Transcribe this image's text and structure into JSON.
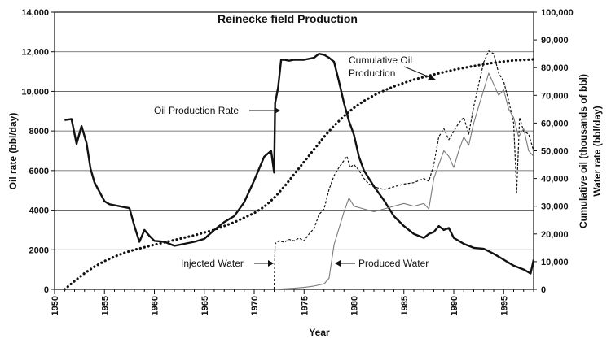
{
  "chart_data": {
    "type": "line",
    "title": "Reinecke field Production",
    "xlabel": "Year",
    "ylabel_left": "Oil rate (bbl/day)",
    "ylabel_right_1": "Cumulative oil (thousands of bbl)",
    "ylabel_right_2": "Water rate (bbl/day)",
    "xlim": [
      1950,
      1998
    ],
    "xticks": [
      "1950",
      "1955",
      "1960",
      "1965",
      "1970",
      "1975",
      "1980",
      "1985",
      "1990",
      "1995"
    ],
    "ylim_left": [
      0,
      14000
    ],
    "yticks_left": [
      "0",
      "2000",
      "4000",
      "6000",
      "8000",
      "10,000",
      "12,000",
      "14,000"
    ],
    "ylim_right": [
      0,
      100000
    ],
    "yticks_right": [
      "0",
      "10,000",
      "20,000",
      "30,000",
      "40,000",
      "50,000",
      "60,000",
      "70,000",
      "80,000",
      "90,000",
      "100,000"
    ],
    "grid": "horizontal",
    "series": [
      {
        "name": "Oil Production Rate",
        "axis": "left",
        "style": "solid-thick",
        "color": "#111111",
        "x": [
          1951,
          1951.7,
          1952.2,
          1952.7,
          1953.2,
          1953.6,
          1954,
          1955,
          1955.5,
          1956,
          1956.5,
          1957,
          1957.5,
          1958,
          1958.5,
          1959,
          1959.5,
          1960,
          1961,
          1962,
          1963,
          1964,
          1965,
          1966,
          1967,
          1968,
          1969,
          1970,
          1971,
          1971.7,
          1972,
          1972.1,
          1972.4,
          1972.7,
          1973,
          1973.5,
          1974,
          1975,
          1976,
          1976.5,
          1977,
          1977.5,
          1978,
          1978.5,
          1979,
          1979.5,
          1980,
          1980.5,
          1981,
          1982,
          1983,
          1984,
          1985,
          1986,
          1987,
          1987.5,
          1988,
          1988.5,
          1989,
          1989.5,
          1990,
          1991,
          1992,
          1993,
          1994,
          1995,
          1996,
          1997,
          1997.7,
          1998
        ],
        "y": [
          8550,
          8600,
          7350,
          8250,
          7400,
          6100,
          5400,
          4450,
          4300,
          4250,
          4200,
          4150,
          4100,
          3200,
          2400,
          3000,
          2700,
          2450,
          2400,
          2200,
          2300,
          2400,
          2550,
          3000,
          3400,
          3700,
          4400,
          5500,
          6700,
          7000,
          5900,
          9400,
          10200,
          11600,
          11600,
          11550,
          11600,
          11600,
          11700,
          11900,
          11850,
          11700,
          11500,
          10500,
          9400,
          8500,
          7800,
          6700,
          6000,
          5200,
          4500,
          3700,
          3200,
          2800,
          2600,
          2800,
          2900,
          3200,
          3000,
          3100,
          2600,
          2300,
          2100,
          2050,
          1800,
          1500,
          1200,
          1000,
          800,
          1500
        ]
      },
      {
        "name": "Cumulative Oil Production",
        "axis": "right",
        "style": "dotted",
        "color": "#111111",
        "x": [
          1951,
          1952,
          1953,
          1954,
          1955,
          1956,
          1957,
          1958,
          1959,
          1960,
          1962,
          1964,
          1966,
          1968,
          1970,
          1971,
          1972,
          1973,
          1974,
          1975,
          1976,
          1977,
          1978,
          1979,
          1980,
          1981,
          1982,
          1983,
          1984,
          1985,
          1986,
          1988,
          1990,
          1992,
          1994,
          1996,
          1998
        ],
        "y": [
          0,
          3000,
          5800,
          8200,
          10200,
          11800,
          13200,
          14300,
          15200,
          16100,
          17800,
          19500,
          21500,
          24200,
          27500,
          29800,
          33000,
          37000,
          41500,
          46000,
          50500,
          55000,
          59000,
          62500,
          65500,
          68000,
          70000,
          71700,
          73200,
          74500,
          75700,
          77500,
          79200,
          80600,
          81800,
          82600,
          83000
        ]
      },
      {
        "name": "Injected Water",
        "axis": "right",
        "style": "dashed",
        "color": "#111111",
        "x": [
          1972,
          1972.1,
          1972.5,
          1973,
          1973.5,
          1974,
          1974.5,
          1975,
          1975.5,
          1976,
          1976.5,
          1977,
          1977.5,
          1978,
          1978.5,
          1979,
          1979.3,
          1979.6,
          1980,
          1980.5,
          1981,
          1981.5,
          1982,
          1983,
          1984,
          1985,
          1986,
          1987,
          1987.5,
          1988,
          1988.5,
          1989,
          1989.5,
          1990,
          1990.5,
          1991,
          1991.5,
          1992,
          1992.5,
          1993,
          1993.5,
          1994,
          1994.5,
          1995,
          1995.5,
          1996,
          1996.3,
          1996.6,
          1997,
          1997.5,
          1998
        ],
        "y": [
          0,
          16500,
          17500,
          17000,
          18000,
          17500,
          18500,
          17500,
          20000,
          22000,
          27000,
          29000,
          36000,
          41000,
          44000,
          46500,
          48000,
          44000,
          45000,
          43000,
          40000,
          38000,
          37000,
          36000,
          37000,
          38000,
          38500,
          40000,
          39000,
          45000,
          55000,
          58000,
          54000,
          57000,
          60000,
          62000,
          56000,
          66000,
          74000,
          82000,
          86000,
          85000,
          78000,
          75000,
          68000,
          60000,
          35000,
          62000,
          57000,
          56000,
          50000
        ]
      },
      {
        "name": "Produced Water",
        "axis": "right",
        "style": "solid-thin",
        "color": "#7a7a7a",
        "x": [
          1972,
          1973,
          1974,
          1975,
          1976,
          1977,
          1977.5,
          1978,
          1978.5,
          1979,
          1979.5,
          1980,
          1981,
          1982,
          1983,
          1984,
          1985,
          1986,
          1987,
          1987.5,
          1988,
          1988.5,
          1989,
          1989.5,
          1990,
          1990.5,
          1991,
          1991.5,
          1992,
          1992.5,
          1993,
          1993.5,
          1994,
          1994.5,
          1995,
          1995.5,
          1996,
          1996.5,
          1997,
          1997.5,
          1998
        ],
        "y": [
          0,
          200,
          400,
          700,
          1200,
          2000,
          4000,
          16000,
          22000,
          28000,
          33000,
          30000,
          29000,
          28000,
          29000,
          30000,
          31000,
          30000,
          31000,
          29000,
          40000,
          45000,
          50000,
          48000,
          44000,
          50000,
          55000,
          52000,
          60000,
          66000,
          72000,
          78000,
          74000,
          70000,
          72000,
          65000,
          62000,
          55000,
          58000,
          50000,
          48000
        ]
      }
    ],
    "annotations": [
      {
        "text": "Oil Production Rate",
        "target_series": 0
      },
      {
        "text": "Cumulative Oil",
        "target_series": 1
      },
      {
        "text": "Production",
        "target_series": 1
      },
      {
        "text": "Injected Water",
        "target_series": 2
      },
      {
        "text": "Produced Water",
        "target_series": 3
      }
    ]
  }
}
